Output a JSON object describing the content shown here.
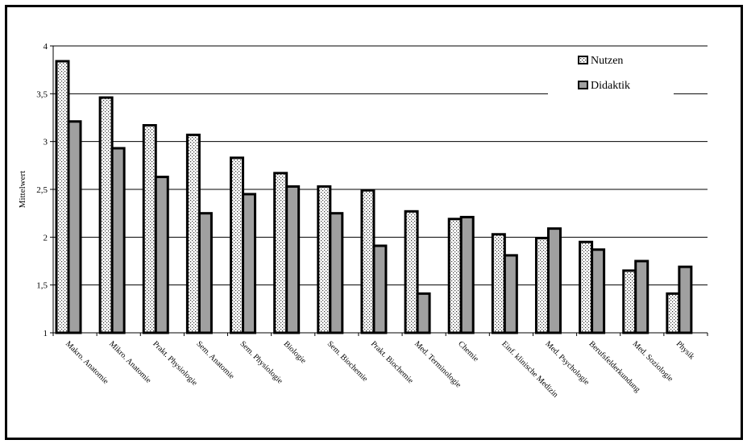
{
  "chart_data": {
    "type": "bar",
    "ylabel": "Mittelwert",
    "xlabel": "",
    "title": "",
    "ylim": [
      1,
      4
    ],
    "yticks": [
      "1",
      "1,5",
      "2",
      "2,5",
      "3",
      "3,5",
      "4"
    ],
    "yticks_values": [
      1,
      1.5,
      2,
      2.5,
      3,
      3.5,
      4
    ],
    "grid": "horizontal",
    "legend_position": "top-right",
    "categories": [
      "Makro. Anatomie",
      "Mikro. Anatomie",
      "Prakt. Physiologie",
      "Sem. Anatomie",
      "Sem. Physiologie",
      "Biologie",
      "Sem. Biochemie",
      "Prakt. Biochemie",
      "Med. Terminologie",
      "Chemie",
      "Einf. klinische Medizin",
      "Med. Psychologie",
      "Berufsfelderkundung",
      "Med. Soziologie",
      "Physik"
    ],
    "series": [
      {
        "name": "Nutzen",
        "pattern": "dotted",
        "values": [
          3.84,
          3.46,
          3.17,
          3.07,
          2.83,
          2.67,
          2.53,
          2.49,
          2.27,
          2.19,
          2.03,
          1.99,
          1.95,
          1.65,
          1.41
        ]
      },
      {
        "name": "Didaktik",
        "color": "#a0a0a0",
        "values": [
          3.21,
          2.93,
          2.63,
          2.25,
          2.45,
          2.53,
          2.25,
          1.91,
          1.41,
          2.21,
          1.81,
          2.09,
          1.87,
          1.75,
          1.69
        ]
      }
    ]
  }
}
